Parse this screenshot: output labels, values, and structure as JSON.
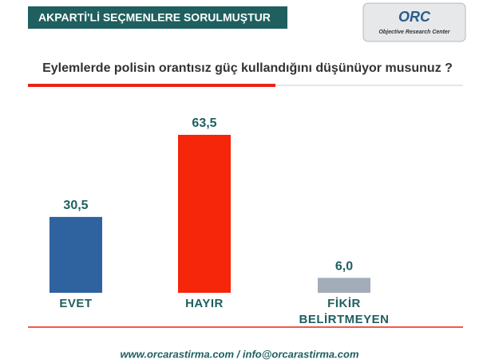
{
  "header": {
    "title": "AKPARTİ'Lİ SEÇMENLERE SORULMUŞTUR",
    "logo_mark": "ORC",
    "logo_text": "Objective Research Center"
  },
  "chart_data": {
    "type": "bar",
    "title": "Eylemlerde polisin orantısız güç kullandığını düşünüyor musunuz ?",
    "categories": [
      "EVET",
      "HAYIR",
      "FİKİR BELİRTMEYEN"
    ],
    "values": [
      30.5,
      63.5,
      6.0
    ],
    "value_labels": [
      "30,5",
      "63,5",
      "6,0"
    ],
    "colors": [
      "#2e63a0",
      "#f5260a",
      "#a3adb9"
    ]
  },
  "footer": {
    "text": "www.orcarastirma.com / info@orcarastirma.com"
  }
}
